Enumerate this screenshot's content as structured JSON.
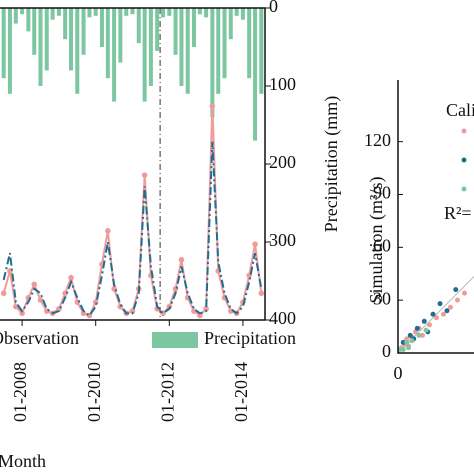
{
  "chart_data": [
    {
      "type": "line",
      "x_label": "Month",
      "y2_label": "Precipitation (mm)",
      "x": [
        2007.5,
        2007.67,
        2007.83,
        2008,
        2008.17,
        2008.33,
        2008.5,
        2008.67,
        2008.83,
        2009,
        2009.17,
        2009.33,
        2009.5,
        2009.67,
        2009.83,
        2010,
        2010.17,
        2010.33,
        2010.5,
        2010.67,
        2010.83,
        2011,
        2011.17,
        2011.33,
        2011.5,
        2011.67,
        2011.83,
        2012,
        2012.17,
        2012.33,
        2012.5,
        2012.67,
        2012.83,
        2013,
        2013.17,
        2013.33,
        2013.5,
        2013.67,
        2013.83,
        2014,
        2014.17,
        2014.33,
        2014.5
      ],
      "xlim": [
        2007.4,
        2014.6
      ],
      "xticks": [
        {
          "value": 2008,
          "label": "01-2008"
        },
        {
          "value": 2010,
          "label": "01-2010"
        },
        {
          "value": 2012,
          "label": "01-2012"
        },
        {
          "value": 2014,
          "label": "01-2014"
        }
      ],
      "ylim": [
        0,
        140
      ],
      "y2lim": [
        0,
        400
      ],
      "y2ticks": [
        0,
        100,
        200,
        300,
        400
      ],
      "y2_inverted": true,
      "divider_x": 2011.75,
      "series": [
        {
          "name": "Precipitation",
          "color": "#7cc6a0",
          "axis": "y2",
          "kind": "bar",
          "values": [
            90,
            110,
            20,
            8,
            30,
            60,
            100,
            80,
            15,
            10,
            40,
            80,
            110,
            60,
            12,
            10,
            50,
            90,
            120,
            70,
            10,
            8,
            45,
            120,
            100,
            55,
            12,
            10,
            60,
            100,
            110,
            50,
            8,
            12,
            140,
            110,
            90,
            40,
            10,
            15,
            90,
            170,
            110
          ]
        },
        {
          "name": "Observation",
          "color": "#f19a9a",
          "kind": "line",
          "markers": true,
          "values": [
            12,
            22,
            6,
            3,
            10,
            16,
            9,
            4,
            3,
            5,
            12,
            19,
            8,
            3,
            2,
            8,
            25,
            40,
            14,
            6,
            3,
            4,
            14,
            65,
            20,
            5,
            3,
            6,
            14,
            27,
            10,
            4,
            2,
            5,
            96,
            22,
            10,
            4,
            3,
            8,
            20,
            34,
            12
          ]
        },
        {
          "color": "#1f6f91",
          "kind": "line",
          "dash": "8 3 2 3",
          "values": [
            18,
            30,
            8,
            4,
            8,
            14,
            12,
            5,
            3,
            4,
            10,
            17,
            10,
            4,
            2,
            6,
            20,
            35,
            16,
            7,
            3,
            3,
            12,
            60,
            24,
            6,
            3,
            5,
            12,
            24,
            12,
            5,
            3,
            4,
            80,
            26,
            12,
            5,
            3,
            6,
            17,
            30,
            14
          ]
        }
      ],
      "legend": [
        "series.1",
        "series.0"
      ]
    },
    {
      "type": "scatter",
      "y_label": "Simulation (m³/s)",
      "legend_title": "Cali",
      "annotation": "R²=",
      "xlim": [
        0,
        42
      ],
      "xticks": [
        0
      ],
      "ylim": [
        0,
        155
      ],
      "yticks": [
        0,
        30,
        60,
        90,
        120
      ],
      "series": [
        {
          "color": "#f19a9a",
          "x": [
            2,
            4,
            6,
            8,
            10,
            14,
            18,
            22,
            26,
            30,
            34,
            38,
            5,
            12
          ],
          "y": [
            3,
            5,
            4,
            9,
            12,
            10,
            16,
            20,
            22,
            26,
            30,
            34,
            8,
            14
          ]
        },
        {
          "color": "#1f6f91",
          "x": [
            3,
            7,
            11,
            15,
            20,
            24,
            28,
            33,
            9,
            17
          ],
          "y": [
            6,
            10,
            14,
            18,
            22,
            28,
            24,
            36,
            8,
            12
          ]
        },
        {
          "color": "#7cc6a0",
          "x": [
            1,
            3,
            5,
            8,
            12,
            16,
            6
          ],
          "y": [
            2,
            2,
            6,
            7,
            10,
            13,
            3
          ]
        }
      ]
    }
  ]
}
